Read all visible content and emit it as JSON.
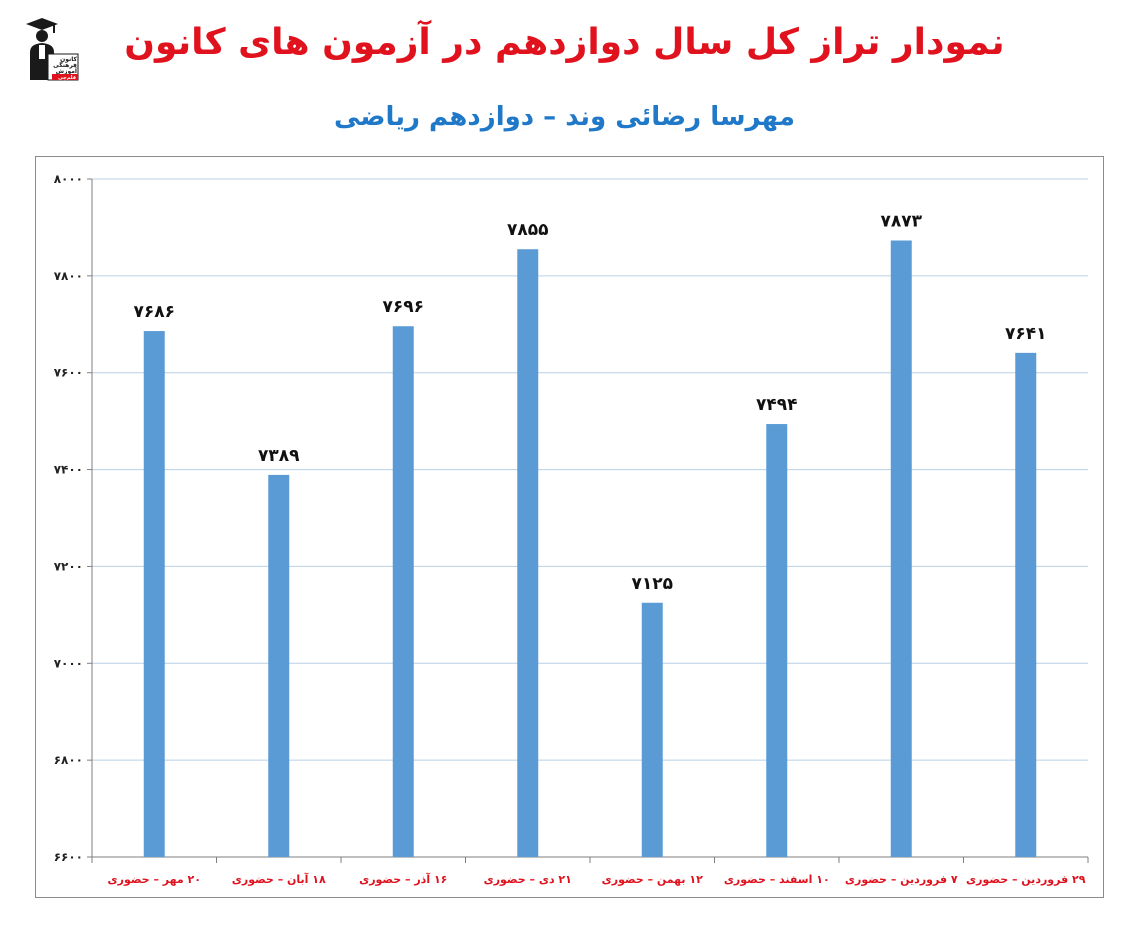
{
  "header": {
    "title": "نمودار تراز کل سال دوازدهم در آزمون های کانون",
    "subtitle": "مهرسا رضائی وند – دوازدهم ریاضی"
  },
  "logo": {
    "icon": "graduate-logo-icon",
    "lines": [
      "کانون",
      "فرهنگی",
      "آموزش",
      "قلم‌چی"
    ]
  },
  "colors": {
    "title": "#e0121e",
    "subtitle": "#1f78c8",
    "bar": "#5b9bd5",
    "x_tick": "#e0121e",
    "grid": "#b8d0e6"
  },
  "chart_data": {
    "type": "bar",
    "categories": [
      "۲۰ مهر – حضوری",
      "۱۸ آبان – حضوری",
      "۱۶ آذر – حضوری",
      "۲۱ دی – حضوری",
      "۱۲ بهمن – حضوری",
      "۱۰ اسفند – حضوری",
      "۷ فروردین – حضوری",
      "۲۹ فروردین – حضوری"
    ],
    "values": [
      7686,
      7389,
      7696,
      7855,
      7125,
      7494,
      7873,
      7641
    ],
    "data_labels": [
      "۷۶۸۶",
      "۷۳۸۹",
      "۷۶۹۶",
      "۷۸۵۵",
      "۷۱۲۵",
      "۷۴۹۴",
      "۷۸۷۳",
      "۷۶۴۱"
    ],
    "ylim": [
      6600,
      8000
    ],
    "yticks": [
      6600,
      6800,
      7000,
      7200,
      7400,
      7600,
      7800,
      8000
    ],
    "ytick_labels": [
      "۶۶۰۰",
      "۶۸۰۰",
      "۷۰۰۰",
      "۷۲۰۰",
      "۷۴۰۰",
      "۷۶۰۰",
      "۷۸۰۰",
      "۸۰۰۰"
    ],
    "grid": true,
    "legend": "none"
  }
}
